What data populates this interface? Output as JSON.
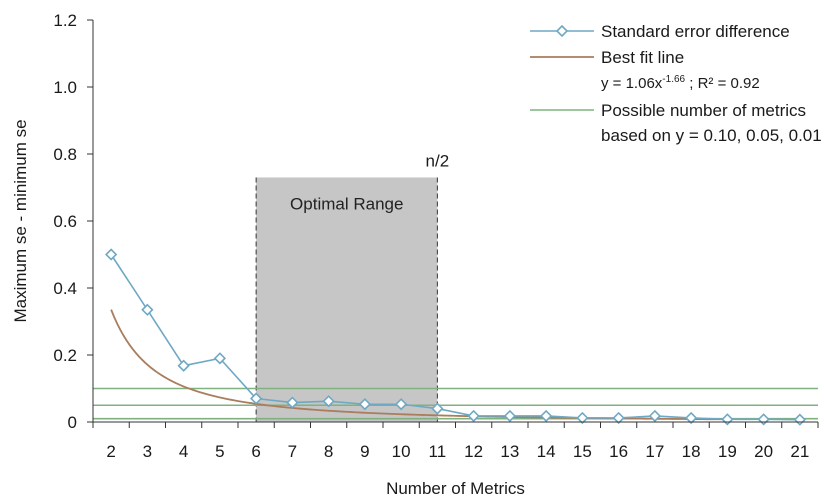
{
  "chart_data": {
    "type": "line",
    "xlabel": "Number of Metrics",
    "ylabel": "Maximum se - minimum se",
    "x_ticks": [
      2,
      3,
      4,
      5,
      6,
      7,
      8,
      9,
      10,
      11,
      12,
      13,
      14,
      15,
      16,
      17,
      18,
      19,
      20,
      21
    ],
    "y_ticks": [
      0,
      0.2,
      0.4,
      0.6,
      0.8,
      1.0,
      1.2
    ],
    "y_tick_labels": [
      "0",
      "0.2",
      "0.4",
      "0.6",
      "0.8",
      "1.0",
      "1.2"
    ],
    "xlim": [
      1.5,
      21.5
    ],
    "ylim": [
      0,
      1.2
    ],
    "grid": false,
    "legend_position": "top-right",
    "series": [
      {
        "name": "Standard error difference",
        "type": "line-markers",
        "marker": "diamond",
        "color": "#6fa8c4",
        "x": [
          2,
          3,
          4,
          5,
          6,
          7,
          8,
          9,
          10,
          11,
          12,
          13,
          14,
          15,
          16,
          17,
          18,
          19,
          20,
          21
        ],
        "y": [
          0.5,
          0.335,
          0.168,
          0.19,
          0.07,
          0.058,
          0.062,
          0.053,
          0.053,
          0.04,
          0.018,
          0.018,
          0.018,
          0.012,
          0.012,
          0.018,
          0.012,
          0.008,
          0.008,
          0.007
        ]
      },
      {
        "name": "Best fit line",
        "type": "fit",
        "color": "#a97d5d",
        "equation": "y = 1.06x-1.66 ; R² = 0.92",
        "coefficient": 1.06,
        "exponent": -1.66,
        "x_start": 2,
        "x_end": 19
      },
      {
        "name": "Possible number of metrics based on y = 0.10, 0.05, 0.01",
        "type": "hlines",
        "color": "#7fb27f",
        "y": [
          0.1,
          0.05,
          0.01
        ]
      }
    ],
    "legend": {
      "entry1": "Standard error difference",
      "entry2": "Best fit line",
      "eq_prefix": "y = 1.06x",
      "eq_exp": "-1.66",
      "eq_suffix": " ; R² = 0.92",
      "entry3_line1": "Possible number of metrics",
      "entry3_line2": "based on y = 0.10, 0.05, 0.01"
    },
    "region": {
      "label": "Optimal Range",
      "x_start": 6,
      "x_end": 11,
      "y_top": 0.73,
      "color": "#c6c6c6",
      "annotation": "n/2"
    }
  }
}
